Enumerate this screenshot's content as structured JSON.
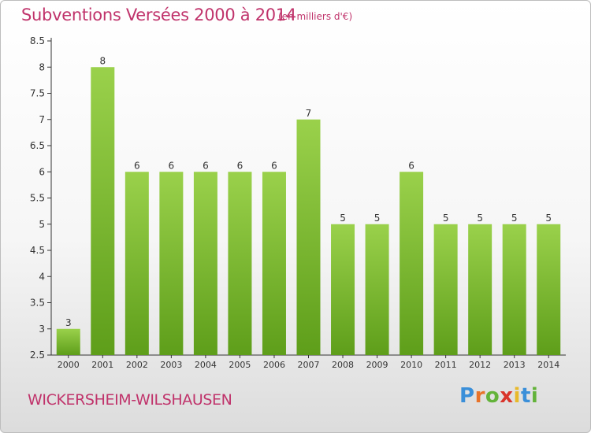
{
  "header": {
    "title": "Subventions Versées 2000 à 2014",
    "unit": "(en milliers d'€)"
  },
  "footer": {
    "commune": "WICKERSHEIM-WILSHAUSEN",
    "logo_letters": [
      "P",
      "r",
      "o",
      "x",
      "i",
      "t",
      "i"
    ],
    "logo_colors": [
      "#3a8fd9",
      "#e8732a",
      "#63b33a",
      "#d9342b",
      "#e8b92a",
      "#3a8fd9",
      "#63b33a"
    ]
  },
  "colors": {
    "title": "#c0336b",
    "bar_top": "#9ad14b",
    "bar_bottom": "#5e9e1a",
    "axis": "#333333"
  },
  "chart_data": {
    "type": "bar",
    "categories": [
      "2000",
      "2001",
      "2002",
      "2003",
      "2004",
      "2005",
      "2006",
      "2007",
      "2008",
      "2009",
      "2010",
      "2011",
      "2012",
      "2013",
      "2014"
    ],
    "values": [
      3,
      8,
      6,
      6,
      6,
      6,
      6,
      7,
      5,
      5,
      6,
      5,
      5,
      5,
      5
    ],
    "data_labels": [
      "3",
      "8",
      "6",
      "6",
      "6",
      "6",
      "6",
      "7",
      "5",
      "5",
      "6",
      "5",
      "5",
      "5",
      "5"
    ],
    "ylim": [
      2.5,
      8.5
    ],
    "yticks": [
      "2.5",
      "3",
      "3.5",
      "4",
      "4.5",
      "5",
      "5.5",
      "6",
      "6.5",
      "7",
      "7.5",
      "8",
      "8.5"
    ],
    "grid": false,
    "legend": "none"
  }
}
